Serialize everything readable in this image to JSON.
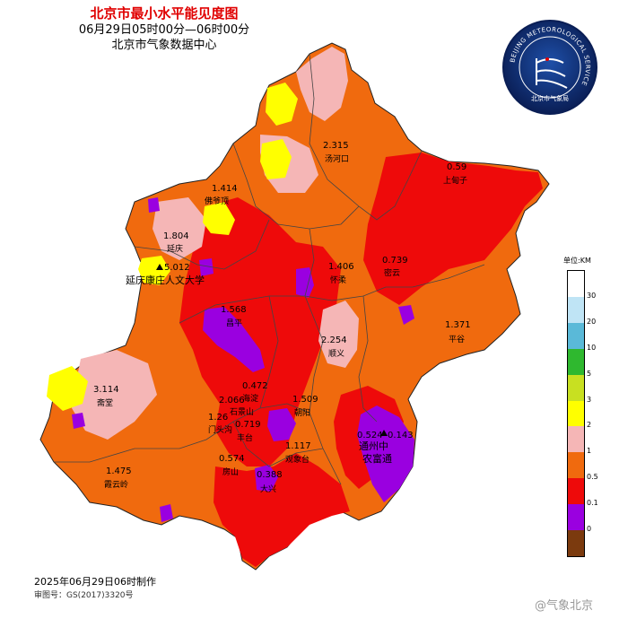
{
  "title": {
    "main": "北京市最小水平能见度图",
    "time": "06月29日05时00分—06时00分",
    "org": "北京市气象数据中心"
  },
  "logo": {
    "ring_text": "BEIJING METEOROLOGICAL SERVICE",
    "name_cn": "北京市气象局"
  },
  "legend": {
    "unit": "单位:KM",
    "levels": [
      {
        "label": "30",
        "color": "#ffffff"
      },
      {
        "label": "20",
        "color": "#bfe4f5"
      },
      {
        "label": "10",
        "color": "#5ab9d8"
      },
      {
        "label": "5",
        "color": "#2fb82f"
      },
      {
        "label": "3",
        "color": "#c8e021"
      },
      {
        "label": "2",
        "color": "#ffff00"
      },
      {
        "label": "1",
        "color": "#f5b6b6"
      },
      {
        "label": "0.5",
        "color": "#f06a0e"
      },
      {
        "label": "0.1",
        "color": "#ee0a0a"
      },
      {
        "label": "0",
        "color": "#9a00e0"
      }
    ],
    "bottom_color": "#7b3a0e"
  },
  "stations": [
    {
      "value": "2.315",
      "name": "汤河口"
    },
    {
      "value": "0.59",
      "name": "上甸子"
    },
    {
      "value": "1.414",
      "name": "佛爷顶"
    },
    {
      "value": "1.804",
      "name": "延庆"
    },
    {
      "value": "5.012",
      "name": "延庆康庄人文大学"
    },
    {
      "value": "0.739",
      "name": "密云"
    },
    {
      "value": "1.406",
      "name": "怀柔"
    },
    {
      "value": "1.568",
      "name": "昌平"
    },
    {
      "value": "1.371",
      "name": "平谷"
    },
    {
      "value": "2.254",
      "name": "顺义"
    },
    {
      "value": "3.114",
      "name": "斋堂"
    },
    {
      "value": "0.472",
      "name": "海淀"
    },
    {
      "value": "2.066",
      "name": "石景山"
    },
    {
      "value": "1.509",
      "name": "朝阳"
    },
    {
      "value": "1.26",
      "name": "门头沟"
    },
    {
      "value": "0.719",
      "name": "丰台"
    },
    {
      "value": "0.524",
      "name": "通州中"
    },
    {
      "value": "0.143",
      "name": "农富通"
    },
    {
      "value": "1.117",
      "name": "观象台"
    },
    {
      "value": "1.475",
      "name": "霞云岭"
    },
    {
      "value": "0.574",
      "name": "房山"
    },
    {
      "value": "0.388",
      "name": "大兴"
    }
  ],
  "footer": {
    "made": "2025年06月29日06时制作",
    "review": "审图号：GS(2017)3320号",
    "watermark": "@气象北京"
  }
}
